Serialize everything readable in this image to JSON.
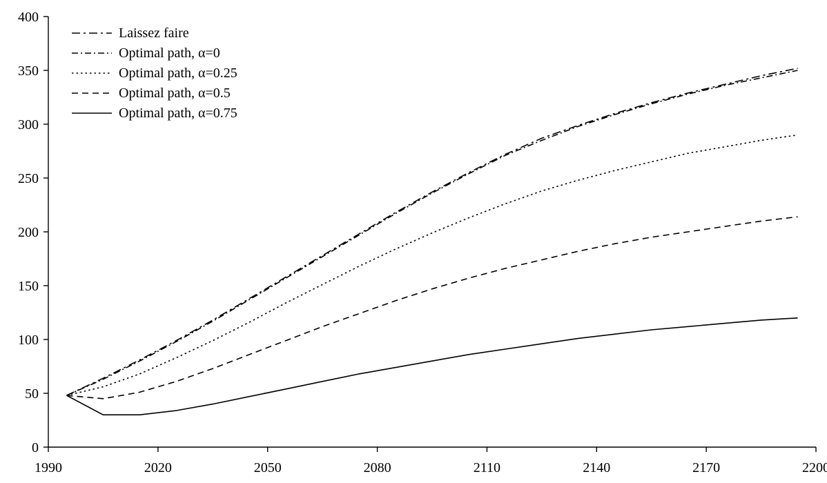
{
  "chart_data": {
    "type": "line",
    "title": "",
    "xlabel": "",
    "ylabel": "",
    "xlim": [
      1990,
      2200
    ],
    "ylim": [
      0,
      400
    ],
    "xticks": [
      1990,
      2020,
      2050,
      2080,
      2110,
      2140,
      2170,
      2200
    ],
    "yticks": [
      0,
      50,
      100,
      150,
      200,
      250,
      300,
      350,
      400
    ],
    "grid": false,
    "legend_position": "top-left",
    "x": [
      1995,
      2005,
      2015,
      2025,
      2035,
      2045,
      2055,
      2065,
      2075,
      2085,
      2095,
      2105,
      2115,
      2125,
      2135,
      2145,
      2155,
      2165,
      2175,
      2185,
      2195
    ],
    "series": [
      {
        "name": "Laissez faire",
        "dash": "dashdot-long",
        "values": [
          48,
          64,
          81,
          99,
          118,
          138,
          158,
          178,
          198,
          218,
          237,
          255,
          272,
          287,
          299,
          310,
          320,
          329,
          337,
          345,
          352
        ]
      },
      {
        "name": "Optimal path, α=0",
        "dash": "dashdot",
        "values": [
          48,
          63,
          80,
          98,
          117,
          137,
          157,
          177,
          197,
          217,
          236,
          254,
          271,
          285,
          298,
          309,
          319,
          328,
          336,
          343,
          350
        ]
      },
      {
        "name": "Optimal path, α=0.25",
        "dash": "dotted",
        "values": [
          48,
          56,
          68,
          83,
          99,
          116,
          134,
          151,
          168,
          184,
          199,
          213,
          226,
          238,
          248,
          257,
          265,
          273,
          279,
          285,
          290
        ]
      },
      {
        "name": "Optimal path, α=0.5",
        "dash": "dashed",
        "values": [
          48,
          45,
          51,
          61,
          73,
          86,
          99,
          112,
          124,
          136,
          147,
          157,
          166,
          174,
          182,
          189,
          195,
          200,
          205,
          210,
          214
        ]
      },
      {
        "name": "Optimal path, α=0.75",
        "dash": "solid",
        "values": [
          48,
          30,
          30,
          34,
          40,
          47,
          54,
          61,
          68,
          74,
          80,
          86,
          91,
          96,
          101,
          105,
          109,
          112,
          115,
          118,
          120
        ]
      }
    ]
  }
}
